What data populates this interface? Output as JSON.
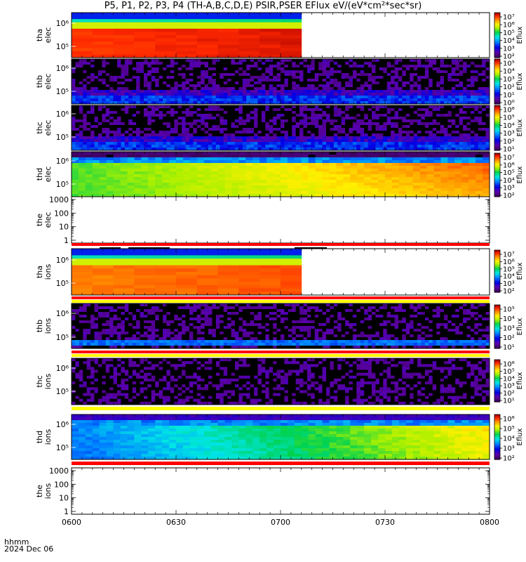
{
  "title": "P5, P1, P2, P3, P4 (TH-A,B,C,D,E) PSIR,PSER EFlux eV/(eV*cm²*sec*sr)",
  "footer": {
    "time_format_label": "hhmm",
    "date_label": "2024 Dec 06"
  },
  "time_axis": {
    "range": [
      "0600",
      "0800"
    ],
    "ticks": [
      "0600",
      "0630",
      "0700",
      "0730",
      "0800"
    ]
  },
  "colorbar_label": "Eflux",
  "colors": {
    "background": "#ffffff",
    "ceiling_red": "#ff0000",
    "ceiling_yellow": "#ffff00",
    "status_bar": "#000000"
  },
  "chart_data": [
    {
      "type": "heatmap",
      "probe": "tha",
      "species": "elec",
      "ylabel": [
        "tha",
        "elec"
      ],
      "y_tick_labels": [
        "10⁶",
        "10⁵"
      ],
      "colorbar_ticks": [
        "10⁷",
        "10⁶",
        "10⁵",
        "10⁴",
        "10³",
        "10²"
      ],
      "colorbar_label": "Eflux",
      "data_ends": "0704",
      "pattern": "high-flux red core, blue/green top rows, no data after ~0704"
    },
    {
      "type": "heatmap",
      "probe": "thb",
      "species": "elec",
      "ylabel": [
        "thb",
        "elec"
      ],
      "y_tick_labels": [
        "10⁶",
        "10⁵"
      ],
      "colorbar_ticks": [
        "10⁵",
        "10⁴",
        "10³",
        "10²",
        "10¹",
        "10⁰"
      ],
      "colorbar_label": "Eflux",
      "pattern": "low-level noise, blue band near bottom"
    },
    {
      "type": "heatmap",
      "probe": "thc",
      "species": "elec",
      "ylabel": [
        "thc",
        "elec"
      ],
      "y_tick_labels": [
        "10⁶",
        "10⁵"
      ],
      "colorbar_ticks": [
        "10⁶",
        "10⁵",
        "10⁴",
        "10³",
        "10²",
        "10¹"
      ],
      "colorbar_label": "Eflux",
      "pattern": "low-level noise, blue band near bottom"
    },
    {
      "type": "heatmap",
      "probe": "thd",
      "species": "elec",
      "ylabel": [
        "thd",
        "elec"
      ],
      "y_tick_labels": [
        "10⁶",
        "10⁵"
      ],
      "colorbar_ticks": [
        "10⁷",
        "10⁶",
        "10⁵",
        "10⁴",
        "10³",
        "10²"
      ],
      "colorbar_label": "Eflux",
      "pattern": "green/yellow early, orange later, dark band on top"
    },
    {
      "type": "line",
      "probe": "the",
      "species": "elec",
      "ylabel": [
        "the",
        "elec"
      ],
      "yscale": "log",
      "ylim": [
        1,
        1000
      ],
      "y_tick_labels": [
        "1000",
        "100",
        "10",
        "1"
      ],
      "pattern": "no data"
    },
    {
      "type": "heatmap",
      "probe": "tha",
      "species": "ions",
      "ylabel": [
        "tha",
        "ions"
      ],
      "y_tick_labels": [
        "10⁶",
        "10⁵"
      ],
      "colorbar_ticks": [
        "10⁷",
        "10⁶",
        "10⁵",
        "10⁴",
        "10³",
        "10²"
      ],
      "colorbar_label": "Eflux",
      "data_ends": "0704",
      "pattern": "orange/red core, blue top rows, no data after ~0704"
    },
    {
      "type": "heatmap",
      "probe": "thb",
      "species": "ions",
      "ylabel": [
        "thb",
        "ions"
      ],
      "y_tick_labels": [
        "10⁶",
        "10⁵"
      ],
      "colorbar_ticks": [
        "10⁵",
        "10⁴",
        "10³",
        "10²",
        "10¹"
      ],
      "colorbar_label": "Eflux",
      "pattern": "sparse purple noise"
    },
    {
      "type": "heatmap",
      "probe": "thc",
      "species": "ions",
      "ylabel": [
        "thc",
        "ions"
      ],
      "y_tick_labels": [
        "10⁶",
        "10⁵"
      ],
      "colorbar_ticks": [
        "10⁶",
        "10⁵",
        "10⁴",
        "10³",
        "10²",
        "10¹"
      ],
      "colorbar_label": "Eflux",
      "pattern": "sparse purple noise"
    },
    {
      "type": "heatmap",
      "probe": "thd",
      "species": "ions",
      "ylabel": [
        "thd",
        "ions"
      ],
      "y_tick_labels": [
        "10⁶",
        "10⁵"
      ],
      "colorbar_ticks": [
        "10⁶",
        "10⁵",
        "10⁴",
        "10³",
        "10²"
      ],
      "colorbar_label": "Eflux",
      "pattern": "cyan/blue early, green mid, yellow late"
    },
    {
      "type": "line",
      "probe": "the",
      "species": "ions",
      "ylabel": [
        "the",
        "ions"
      ],
      "yscale": "log",
      "ylim": [
        1,
        1000
      ],
      "y_tick_labels": [
        "1000",
        "100",
        "10",
        "1"
      ],
      "pattern": "no data"
    }
  ]
}
